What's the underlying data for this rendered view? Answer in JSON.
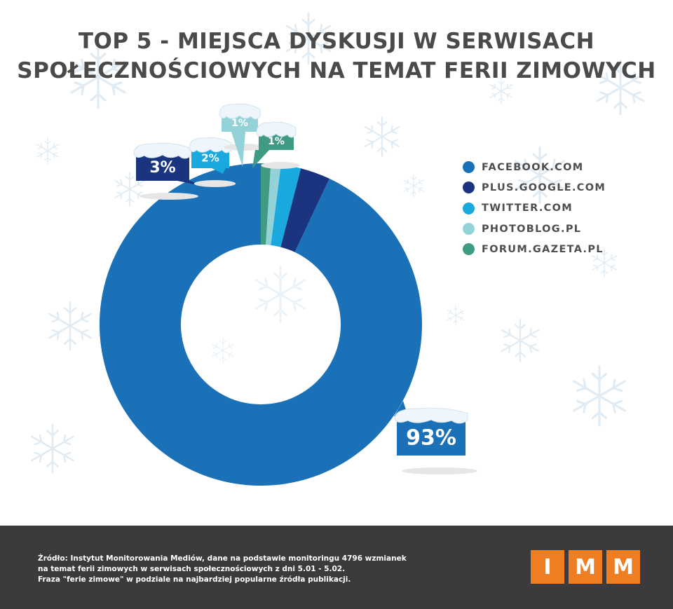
{
  "title_lines": [
    "TOP 5 - MIEJSCA DYSKUSJI W SERWISACH",
    "SPOŁECZNOŚCIOWYCH NA TEMAT FERII ZIMOWYCH"
  ],
  "chart_data": {
    "type": "pie",
    "variant": "donut",
    "title": "TOP 5 - MIEJSCA DYSKUSJI W SERWISACH SPOŁECZNOŚCIOWYCH NA TEMAT FERII ZIMOWYCH",
    "legend_position": "right",
    "slices": [
      {
        "label": "FACEBOOK.COM",
        "value": 93,
        "display": "93%",
        "color": "#1a71b8"
      },
      {
        "label": "PLUS.GOOGLE.COM",
        "value": 3,
        "display": "3%",
        "color": "#1b3480"
      },
      {
        "label": "TWITTER.COM",
        "value": 2,
        "display": "2%",
        "color": "#19a9de"
      },
      {
        "label": "PHOTOBLOG.PL",
        "value": 1,
        "display": "1%",
        "color": "#94d2da"
      },
      {
        "label": "FORUM.GAZETA.PL",
        "value": 1,
        "display": "1%",
        "color": "#3f9b83"
      }
    ]
  },
  "footer": {
    "source_lines": [
      "Źródło: Instytut Monitorowania Mediów, dane na podstawie monitoringu 4796 wzmianek",
      "na temat ferii zimowych w serwisach społecznościowych z dni 5.01 - 5.02.",
      "Fraza \"ferie zimowe\" w podziale na najbardziej popularne źródła publikacji."
    ],
    "logo_letters": [
      "I",
      "M",
      "M"
    ],
    "logo_color": "#ef7e22"
  }
}
